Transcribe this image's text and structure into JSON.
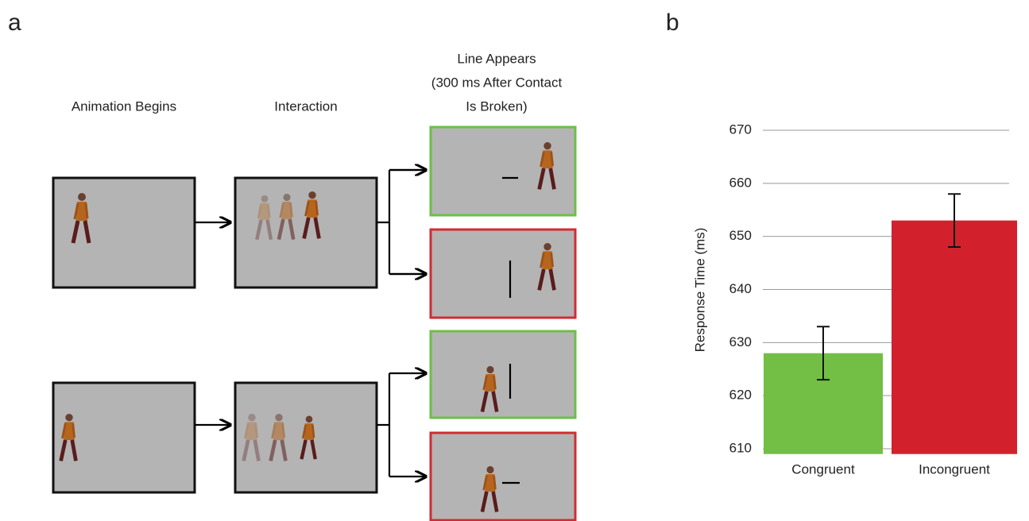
{
  "panel_labels": [
    "a",
    "b"
  ],
  "diagram": {
    "headers": [
      "Animation Begins",
      "Interaction"
    ],
    "outcome_header": [
      "Line Appears",
      "(300 ms After Contact",
      "Is Broken)"
    ]
  },
  "chart_data": {
    "type": "bar",
    "ylabel": "Response Time (ms)",
    "categories": [
      "Congruent",
      "Incongruent"
    ],
    "values": [
      628,
      653
    ],
    "errors": [
      5,
      5
    ],
    "colors": [
      "#73bf45",
      "#d2212d"
    ],
    "ylim": [
      609,
      670
    ],
    "yticks": [
      610,
      620,
      630,
      640,
      650,
      660,
      670
    ],
    "grid": true
  }
}
